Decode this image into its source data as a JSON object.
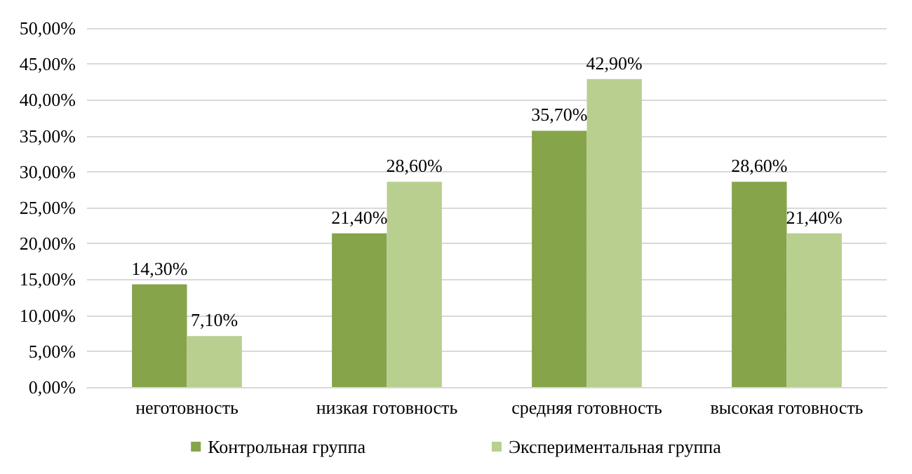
{
  "chart_data": {
    "type": "bar",
    "categories": [
      "неготовность",
      "низкая готовность",
      "средняя готовность",
      "высокая готовность"
    ],
    "series": [
      {
        "name": "Контрольная группа",
        "color": "#86a44a",
        "values": [
          14.3,
          21.4,
          35.7,
          28.6
        ],
        "value_labels": [
          "14,30%",
          "21,40%",
          "35,70%",
          "28,60%"
        ]
      },
      {
        "name": "Экспериментальная группа",
        "color": "#b8cf90",
        "values": [
          7.1,
          28.6,
          42.9,
          21.4
        ],
        "value_labels": [
          "7,10%",
          "28,60%",
          "42,90%",
          "21,40%"
        ]
      }
    ],
    "ylim": [
      0,
      50
    ],
    "yticks": [
      {
        "value": 0,
        "label": "0,00%"
      },
      {
        "value": 5,
        "label": "5,00%"
      },
      {
        "value": 10,
        "label": "10,00%"
      },
      {
        "value": 15,
        "label": "15,00%"
      },
      {
        "value": 20,
        "label": "20,00%"
      },
      {
        "value": 25,
        "label": "25,00%"
      },
      {
        "value": 30,
        "label": "30,00%"
      },
      {
        "value": 35,
        "label": "35,00%"
      },
      {
        "value": 40,
        "label": "40,00%"
      },
      {
        "value": 45,
        "label": "45,00%"
      },
      {
        "value": 50,
        "label": "50,00%"
      }
    ],
    "grid": "y",
    "legend": "bottom"
  }
}
